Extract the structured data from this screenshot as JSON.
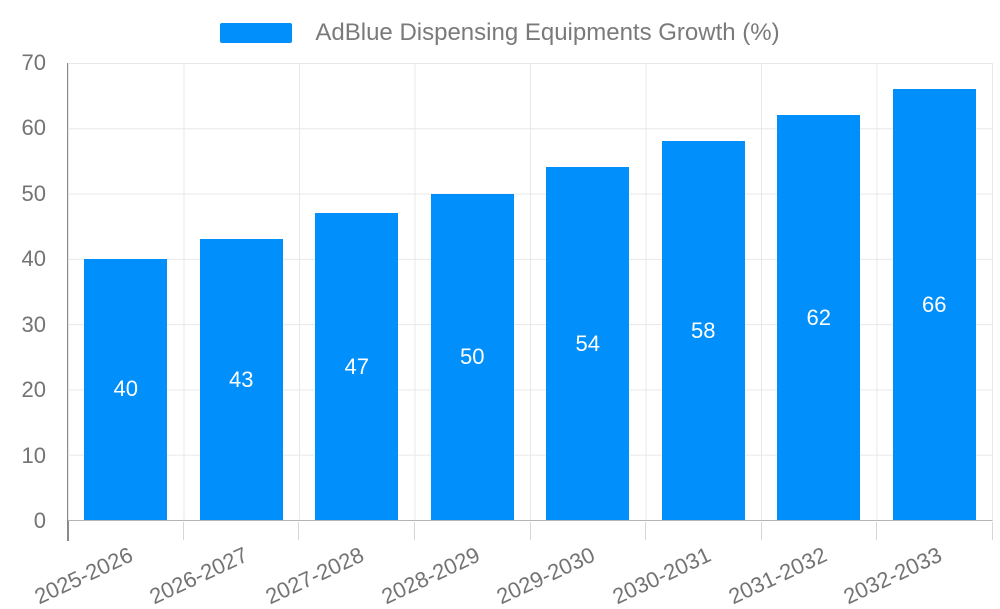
{
  "legend": {
    "label": "AdBlue Dispensing Equipments Growth (%)"
  },
  "chart_data": {
    "type": "bar",
    "title": "AdBlue Dispensing Equipments Growth (%)",
    "categories": [
      "2025-2026",
      "2026-2027",
      "2027-2028",
      "2028-2029",
      "2029-2030",
      "2030-2031",
      "2031-2032",
      "2032-2033"
    ],
    "series": [
      {
        "name": "AdBlue Dispensing Equipments Growth (%)",
        "values": [
          40,
          43,
          47,
          50,
          54,
          58,
          62,
          66
        ]
      }
    ],
    "data_labels": [
      "40",
      "43",
      "47",
      "50",
      "54",
      "58",
      "62",
      "66"
    ],
    "xlabel": "",
    "ylabel": "",
    "ylim": [
      0,
      70
    ],
    "y_ticks": [
      0,
      10,
      20,
      30,
      40,
      50,
      60,
      70
    ],
    "grid": true,
    "legend_position": "top",
    "colors": {
      "bar": "#008FFB",
      "data_label_text": "#FFFFFF",
      "axis_text": "#737373",
      "legend_text": "#7A7A7A",
      "gridline": "#E8E8E8",
      "axis_line": "#8A8A8A"
    }
  }
}
